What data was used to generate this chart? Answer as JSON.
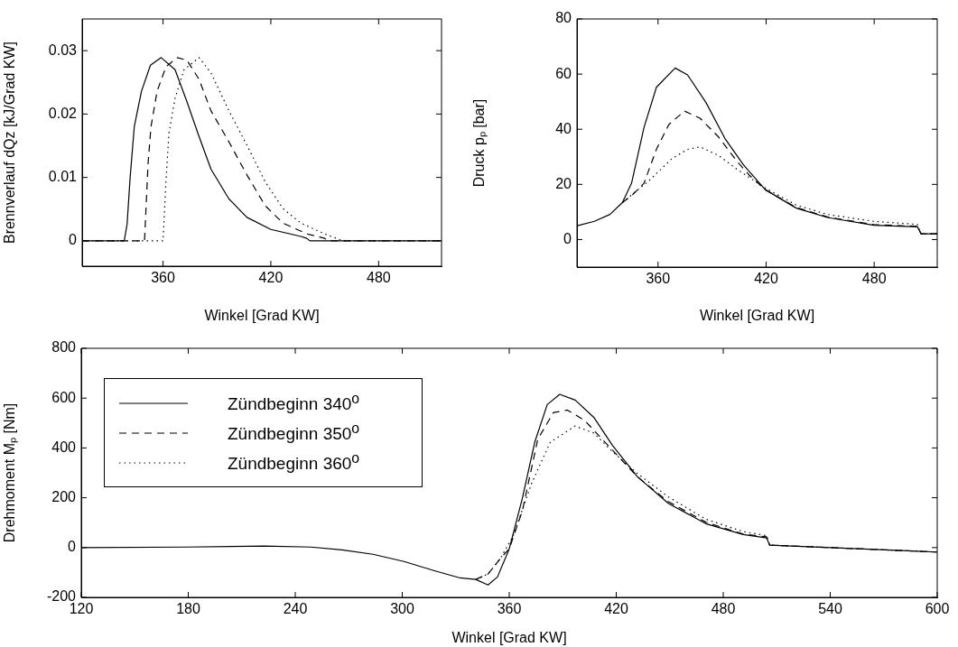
{
  "chart_data": [
    {
      "type": "line",
      "xlabel": "Winkel [Grad KW]",
      "ylabel": "Brennverlauf dQz [kJ/Grad KW]",
      "xlim": [
        315,
        515
      ],
      "xticks": [
        360,
        420,
        480
      ],
      "ylim": [
        -0.004,
        0.035
      ],
      "yticks": [
        0,
        0.01,
        0.02,
        0.03
      ],
      "grid": false,
      "legend": false,
      "series": [
        {
          "color": "#000000",
          "line_style": "solid",
          "x": [
            315,
            338.4,
            340,
            341.7,
            344,
            348,
            353,
            359,
            366.7,
            373,
            380,
            386.7,
            396.7,
            406.7,
            420,
            436.7,
            440,
            441.7,
            515
          ],
          "values": [
            0,
            0,
            0.0026,
            0.01,
            0.018,
            0.0236,
            0.0277,
            0.0289,
            0.027,
            0.0222,
            0.0165,
            0.0113,
            0.0066,
            0.0037,
            0.0018,
            0.0007,
            0.0004,
            0,
            0
          ]
        },
        {
          "color": "#000000",
          "line_style": "dashed",
          "x": [
            315,
            349.7,
            351.7,
            353.3,
            356.7,
            361.7,
            368,
            373.3,
            380,
            386.7,
            396.7,
            406.7,
            416.7,
            426.7,
            440,
            450,
            451.7,
            515
          ],
          "values": [
            0,
            0,
            0.0123,
            0.018,
            0.0236,
            0.0275,
            0.0289,
            0.0285,
            0.0255,
            0.0205,
            0.0156,
            0.0104,
            0.0056,
            0.0028,
            0.0011,
            0.0004,
            0,
            0
          ]
        },
        {
          "color": "#000000",
          "line_style": "dotted",
          "x": [
            315,
            360,
            361.7,
            363.3,
            366.7,
            371.7,
            380,
            386.7,
            396.7,
            406.7,
            416.7,
            426.7,
            436.7,
            450,
            460,
            515
          ],
          "values": [
            0,
            0,
            0.0097,
            0.017,
            0.0225,
            0.027,
            0.0289,
            0.0265,
            0.0205,
            0.0151,
            0.0094,
            0.0051,
            0.0028,
            0.0011,
            0,
            0
          ]
        }
      ]
    },
    {
      "type": "line",
      "xlabel": "Winkel [Grad KW]",
      "ylabel": "Druck pₚ [bar]",
      "xlim": [
        315,
        515
      ],
      "xticks": [
        360,
        420,
        480
      ],
      "ylim": [
        -10,
        80
      ],
      "yticks": [
        0,
        20,
        40,
        60,
        80
      ],
      "grid": false,
      "legend": false,
      "series": [
        {
          "color": "#000000",
          "line_style": "solid",
          "x": [
            315.2,
            324.7,
            333.3,
            340.2,
            345.3,
            352.2,
            359.1,
            369.5,
            376.4,
            386.7,
            397.1,
            407.4,
            419.5,
            436.7,
            454,
            479.8,
            504,
            506,
            515
          ],
          "values": [
            5,
            6.6,
            9.1,
            13.4,
            20.4,
            40.6,
            55.2,
            62.2,
            59.7,
            49.6,
            36.7,
            27.1,
            18.1,
            11.4,
            8,
            5.2,
            4.6,
            2.1,
            2.1
          ]
        },
        {
          "color": "#000000",
          "line_style": "dashed",
          "x": [
            340.2,
            345.3,
            352.2,
            359.1,
            366,
            374.7,
            383.3,
            393.6,
            404,
            410.9,
            419.5,
            436.7,
            454,
            479.8,
            504,
            506,
            515
          ],
          "values": [
            13.4,
            15.9,
            20.4,
            32.7,
            41.7,
            46.6,
            44,
            37.2,
            28.2,
            23.2,
            18.1,
            11.6,
            8.2,
            5.4,
            4.8,
            2.1,
            2.1
          ]
        },
        {
          "color": "#000000",
          "line_style": "dotted",
          "x": [
            340.2,
            355.3,
            367.8,
            376.4,
            383.3,
            393.6,
            404,
            419.5,
            436.7,
            454,
            479.8,
            504,
            506,
            515
          ],
          "values": [
            13.4,
            21.5,
            29.4,
            32.7,
            33.6,
            30.5,
            25.4,
            18.7,
            12.5,
            9.1,
            6.6,
            5.5,
            2.1,
            2.1
          ]
        }
      ]
    },
    {
      "type": "line",
      "xlabel": "Winkel [Grad KW]",
      "ylabel": "Drehmoment Mₚ [Nm]",
      "xlim": [
        120,
        600
      ],
      "xticks": [
        120,
        180,
        240,
        300,
        360,
        420,
        480,
        540,
        600
      ],
      "ylim": [
        -200,
        800
      ],
      "yticks": [
        -200,
        0,
        200,
        400,
        600,
        800
      ],
      "grid": false,
      "legend": "top left",
      "series": [
        {
          "name": "Zündbeginn 340$^{o}$",
          "color": "#000000",
          "line_style": "solid",
          "x": [
            120,
            179,
            222.6,
            248.7,
            266.2,
            283.6,
            301,
            318.5,
            332.5,
            341.2,
            348.1,
            353.4,
            360,
            367.3,
            374.3,
            381.3,
            388.3,
            397,
            407.4,
            417.9,
            431.9,
            449.3,
            470.2,
            491.2,
            504.3,
            506,
            599.8
          ],
          "values": [
            0,
            2,
            6,
            2,
            -9,
            -27,
            -56,
            -94,
            -122,
            -128,
            -150,
            -118,
            -5,
            196,
            423,
            574,
            615,
            592,
            523,
            410,
            284,
            177,
            96,
            52,
            39,
            10,
            -18
          ]
        },
        {
          "name": "Zündbeginn 350$^{o}$",
          "color": "#000000",
          "line_style": "dashed",
          "x": [
            341.2,
            348.1,
            355.1,
            360,
            367.3,
            376,
            384.8,
            392.6,
            402.2,
            417.9,
            431.9,
            449.3,
            470.2,
            491.2,
            504.3,
            506,
            599.8
          ],
          "values": [
            -128,
            -106,
            -43,
            -5,
            146,
            435,
            542,
            552,
            511,
            391,
            284,
            184,
            102,
            54,
            43,
            10,
            -18
          ]
        },
        {
          "name": "Zündbeginn 360$^{o}$",
          "color": "#000000",
          "line_style": "dotted",
          "x": [
            341.2,
            348.1,
            355.1,
            362.1,
            372.6,
            383,
            397,
            407.4,
            417.9,
            431.9,
            449.3,
            470.2,
            491.2,
            504.3,
            506,
            599.8
          ],
          "values": [
            -128,
            -106,
            -43,
            45,
            259,
            423,
            488,
            460,
            385,
            297,
            203,
            114,
            64,
            48,
            10,
            -18
          ]
        }
      ]
    }
  ]
}
